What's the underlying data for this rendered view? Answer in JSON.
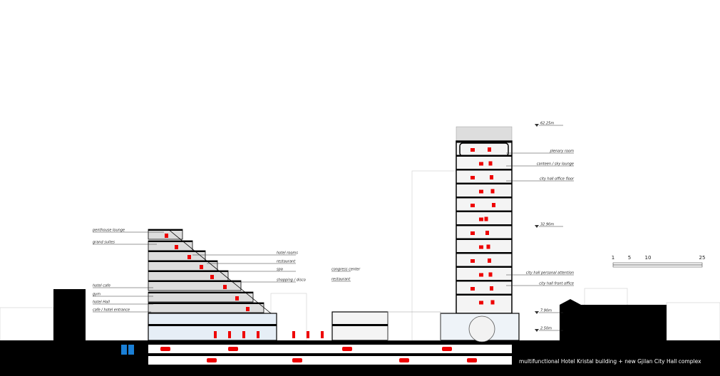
{
  "labels_left": [
    "penthouse lounge",
    "grand suites",
    "hotel cafe",
    "gym",
    "hotel Hall",
    "cafe / hotel entrance"
  ],
  "labels_middle": [
    "hotel rooms",
    "restaurant",
    "spa",
    "shopping / disco"
  ],
  "labels_congress": [
    "congress center",
    "restaurant"
  ],
  "labels_tower": [
    "plenary room",
    "canteen / sky lounge",
    "city hall office floor",
    "city hall personal attention",
    "city hall front office"
  ],
  "levels": [
    "62.25m",
    "32.90m",
    "7.90m",
    "2.50m"
  ],
  "scale": [
    "1",
    "5",
    "10",
    "25"
  ],
  "caption": "multifunctional Hotel Kristal building + new Gjilan City Hall complex"
}
